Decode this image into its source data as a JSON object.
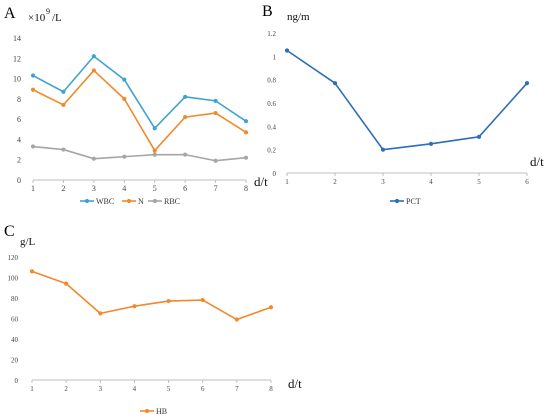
{
  "panels": {
    "a": {
      "letter": "A",
      "unit_prefix": "×10",
      "unit_exp": "9",
      "unit_suffix": "/L",
      "xunit": "d/t"
    },
    "b": {
      "letter": "B",
      "unit": "ng/m",
      "xunit": "d/t"
    },
    "c": {
      "letter": "C",
      "unit": "g/L",
      "xunit": "d/t"
    }
  },
  "chart_data": [
    {
      "type": "line",
      "panel": "A",
      "x": [
        1,
        2,
        3,
        4,
        5,
        6,
        7,
        8
      ],
      "ylim": [
        0,
        14
      ],
      "yticks": [
        0,
        2,
        4,
        6,
        8,
        10,
        12,
        14
      ],
      "ylabel": "×10^9/L",
      "xlabel": "d/t",
      "grid": false,
      "legend": "bottom",
      "series": [
        {
          "name": "WBC",
          "color": "#3fa3d1",
          "values": [
            10.3,
            8.7,
            12.2,
            9.9,
            5.1,
            8.2,
            7.8,
            5.8
          ]
        },
        {
          "name": "N",
          "color": "#f08a2c",
          "values": [
            8.9,
            7.4,
            10.8,
            8.0,
            2.9,
            6.2,
            6.6,
            4.7
          ]
        },
        {
          "name": "RBC",
          "color": "#a6a6a6",
          "values": [
            3.3,
            3.0,
            2.1,
            2.3,
            2.5,
            2.5,
            1.9,
            2.2
          ]
        }
      ]
    },
    {
      "type": "line",
      "panel": "B",
      "x": [
        1,
        2,
        3,
        4,
        5,
        6
      ],
      "ylim": [
        0,
        1.2
      ],
      "yticks": [
        0,
        0.2,
        0.4,
        0.6,
        0.8,
        1,
        1.2
      ],
      "ylabel": "ng/m",
      "xlabel": "d/t",
      "grid": false,
      "legend": "bottom",
      "series": [
        {
          "name": "PCT",
          "color": "#2f6db5",
          "values": [
            1.05,
            0.77,
            0.2,
            0.25,
            0.31,
            0.77
          ]
        }
      ]
    },
    {
      "type": "line",
      "panel": "C",
      "x": [
        1,
        2,
        3,
        4,
        5,
        6,
        7,
        8
      ],
      "ylim": [
        0,
        120
      ],
      "yticks": [
        0,
        20,
        40,
        60,
        80,
        100,
        120
      ],
      "ylabel": "g/L",
      "xlabel": "d/t",
      "grid": false,
      "legend": "bottom",
      "series": [
        {
          "name": "HB",
          "color": "#f08a2c",
          "values": [
            106,
            94,
            65,
            72,
            77,
            78,
            59,
            71
          ]
        }
      ]
    }
  ]
}
